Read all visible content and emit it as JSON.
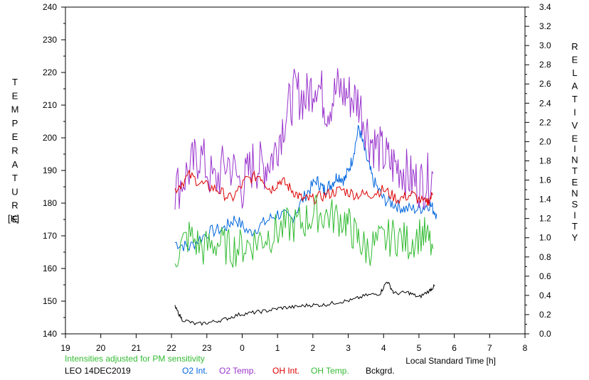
{
  "chart_data": {
    "type": "line",
    "left_axis": {
      "label_letters": [
        "T",
        "E",
        "M",
        "P",
        "E",
        "R",
        "A",
        "T",
        "U",
        "R",
        "E"
      ],
      "unit": "[K]",
      "ylim": [
        140,
        240
      ],
      "ticks": [
        "140",
        "150",
        "160",
        "170",
        "180",
        "190",
        "200",
        "210",
        "220",
        "230",
        "240"
      ]
    },
    "right_axis": {
      "label_letters_1": [
        "R",
        "E",
        "L",
        "A",
        "T",
        "I",
        "V",
        "E"
      ],
      "label_letters_2": [
        "I",
        "N",
        "T",
        "E",
        "N",
        "S",
        "I",
        "T",
        "Y"
      ],
      "ylim": [
        0.0,
        3.4
      ],
      "ticks": [
        "0.0",
        "0.2",
        "0.4",
        "0.6",
        "0.8",
        "1.0",
        "1.2",
        "1.4",
        "1.6",
        "1.8",
        "2.0",
        "2.2",
        "2.4",
        "2.6",
        "2.8",
        "3.0",
        "3.2",
        "3.4"
      ]
    },
    "x_axis": {
      "label": "Local Standard Time [h]",
      "xlim": [
        19,
        32
      ],
      "ticks": [
        "19",
        "20",
        "21",
        "22",
        "23",
        "0",
        "1",
        "2",
        "3",
        "4",
        "5",
        "6",
        "7",
        "8"
      ]
    },
    "note": "Intensities adjusted for PM sensitivity",
    "station": "LEO 14DEC2019",
    "series": [
      {
        "name": "O2 Int.",
        "color": "#0066dd",
        "axis": "right",
        "points": [
          [
            22.1,
            0.95
          ],
          [
            22.5,
            0.9
          ],
          [
            23.0,
            1.05
          ],
          [
            23.5,
            1.1
          ],
          [
            23.8,
            1.2
          ],
          [
            24.2,
            1.05
          ],
          [
            24.6,
            1.15
          ],
          [
            25.0,
            1.25
          ],
          [
            25.4,
            1.2
          ],
          [
            25.8,
            1.45
          ],
          [
            26.1,
            1.6
          ],
          [
            26.3,
            1.5
          ],
          [
            26.5,
            1.55
          ],
          [
            26.7,
            1.65
          ],
          [
            26.9,
            1.6
          ],
          [
            27.1,
            1.8
          ],
          [
            27.3,
            2.15
          ],
          [
            27.5,
            1.85
          ],
          [
            27.7,
            1.6
          ],
          [
            28.0,
            1.4
          ],
          [
            28.3,
            1.35
          ],
          [
            28.6,
            1.3
          ],
          [
            29.0,
            1.3
          ],
          [
            29.3,
            1.35
          ],
          [
            29.5,
            1.25
          ]
        ]
      },
      {
        "name": "O2 Temp.",
        "color": "#9933cc",
        "axis": "left",
        "points": [
          [
            22.1,
            184
          ],
          [
            22.5,
            190
          ],
          [
            22.8,
            195
          ],
          [
            23.2,
            186
          ],
          [
            23.6,
            193
          ],
          [
            24.0,
            185
          ],
          [
            24.3,
            192
          ],
          [
            24.6,
            191
          ],
          [
            24.9,
            195
          ],
          [
            25.2,
            206
          ],
          [
            25.5,
            214
          ],
          [
            25.8,
            212
          ],
          [
            26.1,
            218
          ],
          [
            26.4,
            209
          ],
          [
            26.7,
            215
          ],
          [
            27.0,
            213
          ],
          [
            27.3,
            211
          ],
          [
            27.6,
            200
          ],
          [
            27.9,
            196
          ],
          [
            28.2,
            192
          ],
          [
            28.5,
            191
          ],
          [
            28.8,
            187
          ],
          [
            29.1,
            186
          ],
          [
            29.4,
            189
          ]
        ]
      },
      {
        "name": "OH Int.",
        "color": "#dd0000",
        "axis": "right",
        "points": [
          [
            22.1,
            1.5
          ],
          [
            22.5,
            1.65
          ],
          [
            22.9,
            1.55
          ],
          [
            23.3,
            1.5
          ],
          [
            23.7,
            1.4
          ],
          [
            24.1,
            1.6
          ],
          [
            24.5,
            1.65
          ],
          [
            24.8,
            1.5
          ],
          [
            25.1,
            1.6
          ],
          [
            25.4,
            1.5
          ],
          [
            25.7,
            1.4
          ],
          [
            26.0,
            1.4
          ],
          [
            26.4,
            1.45
          ],
          [
            26.8,
            1.5
          ],
          [
            27.2,
            1.45
          ],
          [
            27.6,
            1.45
          ],
          [
            28.0,
            1.5
          ],
          [
            28.4,
            1.4
          ],
          [
            28.8,
            1.45
          ],
          [
            29.2,
            1.35
          ],
          [
            29.4,
            1.45
          ]
        ]
      },
      {
        "name": "OH Temp.",
        "color": "#33bb33",
        "axis": "left",
        "points": [
          [
            22.1,
            164
          ],
          [
            22.5,
            170
          ],
          [
            22.9,
            166
          ],
          [
            23.3,
            168
          ],
          [
            23.7,
            166
          ],
          [
            24.1,
            167
          ],
          [
            24.5,
            169
          ],
          [
            24.9,
            171
          ],
          [
            25.3,
            173
          ],
          [
            25.7,
            174
          ],
          [
            26.1,
            177
          ],
          [
            26.5,
            176
          ],
          [
            26.9,
            175
          ],
          [
            27.2,
            170
          ],
          [
            27.5,
            166
          ],
          [
            27.9,
            168
          ],
          [
            28.3,
            170
          ],
          [
            28.7,
            168
          ],
          [
            29.1,
            171
          ],
          [
            29.4,
            166
          ]
        ]
      },
      {
        "name": "Bckgrd.",
        "color": "#000000",
        "axis": "right",
        "points": [
          [
            22.1,
            0.28
          ],
          [
            22.3,
            0.15
          ],
          [
            22.7,
            0.1
          ],
          [
            23.1,
            0.12
          ],
          [
            23.5,
            0.15
          ],
          [
            23.9,
            0.2
          ],
          [
            24.3,
            0.22
          ],
          [
            24.7,
            0.24
          ],
          [
            25.1,
            0.27
          ],
          [
            25.5,
            0.28
          ],
          [
            25.9,
            0.3
          ],
          [
            26.3,
            0.3
          ],
          [
            26.7,
            0.33
          ],
          [
            27.1,
            0.35
          ],
          [
            27.5,
            0.4
          ],
          [
            27.9,
            0.42
          ],
          [
            28.1,
            0.55
          ],
          [
            28.3,
            0.42
          ],
          [
            28.7,
            0.43
          ],
          [
            29.0,
            0.38
          ],
          [
            29.3,
            0.45
          ],
          [
            29.45,
            0.5
          ]
        ]
      }
    ]
  }
}
